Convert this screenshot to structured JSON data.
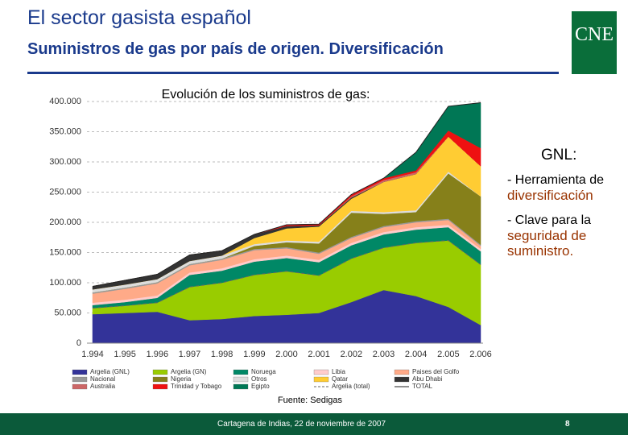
{
  "header": {
    "title": "El sector gasista español",
    "subtitle": "Suministros de gas por país de origen. Diversificación",
    "logo": "CNE"
  },
  "notes": {
    "heading": "GNL:",
    "items": [
      {
        "text": "- Herramienta de",
        "highlight": "diversificación"
      },
      {
        "text": "- Clave para la",
        "highlight": "seguridad de suministro."
      }
    ]
  },
  "footer": {
    "place": "Cartagena de Indias, 22 de noviembre de 2007",
    "page": "8"
  },
  "chart_data": {
    "type": "area",
    "title": "Evolución de los suministros de gas:",
    "source": "Fuente: Sedigas",
    "categories": [
      "1.994",
      "1.995",
      "1.996",
      "1.997",
      "1.998",
      "1.999",
      "2.000",
      "2.001",
      "2.002",
      "2.003",
      "2.004",
      "2.005",
      "2.006"
    ],
    "ylim": [
      0,
      400000
    ],
    "yticks": [
      {
        "value": 0,
        "label": "0"
      },
      {
        "value": 50000,
        "label": "50.000"
      },
      {
        "value": 100000,
        "label": "100.000"
      },
      {
        "value": 150000,
        "label": "150.000"
      },
      {
        "value": 200000,
        "label": "200.000"
      },
      {
        "value": 250000,
        "label": "250.000"
      },
      {
        "value": 300000,
        "label": "300.000"
      },
      {
        "value": 350000,
        "label": "350.000"
      },
      {
        "value": 400000,
        "label": "400.000"
      }
    ],
    "grid": true,
    "series": [
      {
        "name": "Argelia (GNL)",
        "color": "#333399",
        "values": [
          48000,
          50000,
          52000,
          38000,
          40000,
          45000,
          47000,
          50000,
          68000,
          88000,
          78000,
          60000,
          30000
        ]
      },
      {
        "name": "Argelia (GN)",
        "color": "#99cc00",
        "values": [
          10000,
          12000,
          15000,
          55000,
          60000,
          68000,
          72000,
          62000,
          72000,
          70000,
          88000,
          110000,
          100000
        ]
      },
      {
        "name": "Noruega",
        "color": "#008866",
        "values": [
          5000,
          6000,
          8000,
          20000,
          20000,
          22000,
          22000,
          22000,
          22000,
          22000,
          22000,
          22000,
          22000
        ]
      },
      {
        "name": "Libia",
        "color": "#ffcccc",
        "values": [
          4000,
          4000,
          4000,
          4000,
          4000,
          4000,
          4000,
          4000,
          4000,
          4000,
          4000,
          4000,
          4000
        ]
      },
      {
        "name": "Paises del Golfo",
        "color": "#ffaa88",
        "values": [
          15000,
          18000,
          20000,
          12000,
          14000,
          15000,
          12000,
          10000,
          8000,
          8000,
          8000,
          8000,
          5000
        ]
      },
      {
        "name": "Nacional",
        "color": "#999999",
        "values": [
          2000,
          2000,
          2000,
          2000,
          2000,
          2000,
          2000,
          2000,
          2000,
          2000,
          2000,
          2000,
          2000
        ]
      },
      {
        "name": "Nigeria",
        "color": "#86801a",
        "values": [
          0,
          0,
          0,
          0,
          0,
          5000,
          8000,
          15000,
          40000,
          20000,
          15000,
          75000,
          80000
        ]
      },
      {
        "name": "Otros",
        "color": "#dddddd",
        "values": [
          5000,
          5000,
          5000,
          5000,
          5000,
          3000,
          3000,
          3000,
          3000,
          3000,
          3000,
          3000,
          0
        ]
      },
      {
        "name": "Qatar",
        "color": "#ffcc33",
        "values": [
          0,
          0,
          0,
          0,
          0,
          10000,
          20000,
          25000,
          20000,
          50000,
          60000,
          58000,
          50000
        ]
      },
      {
        "name": "Abu Dhabi",
        "color": "#333333",
        "values": [
          5000,
          7000,
          8000,
          10000,
          8000,
          6000,
          4000,
          2000,
          2000,
          0,
          0,
          0,
          0
        ]
      },
      {
        "name": "Australia",
        "color": "#cc6666",
        "values": [
          0,
          0,
          0,
          0,
          0,
          0,
          0,
          0,
          2000,
          3000,
          3000,
          0,
          0
        ]
      },
      {
        "name": "Trinidad y Tobago",
        "color": "#ee1111",
        "values": [
          0,
          0,
          0,
          0,
          0,
          0,
          2000,
          2000,
          3000,
          3000,
          3000,
          10000,
          30000
        ]
      },
      {
        "name": "Egipto",
        "color": "#007755",
        "values": [
          0,
          0,
          0,
          0,
          0,
          0,
          0,
          0,
          0,
          0,
          30000,
          40000,
          75000
        ]
      },
      {
        "name": "Argelia (total)",
        "type": "line",
        "dash": true,
        "color": "#666666",
        "values": [
          58000,
          62000,
          67000,
          93000,
          100000,
          113000,
          119000,
          112000,
          140000,
          158000,
          166000,
          170000,
          130000
        ]
      },
      {
        "name": "TOTAL",
        "type": "line",
        "color": "#222222",
        "values": [
          94000,
          104000,
          114000,
          146000,
          153000,
          180000,
          196000,
          197000,
          246000,
          273000,
          316000,
          392000,
          398000
        ]
      }
    ]
  }
}
